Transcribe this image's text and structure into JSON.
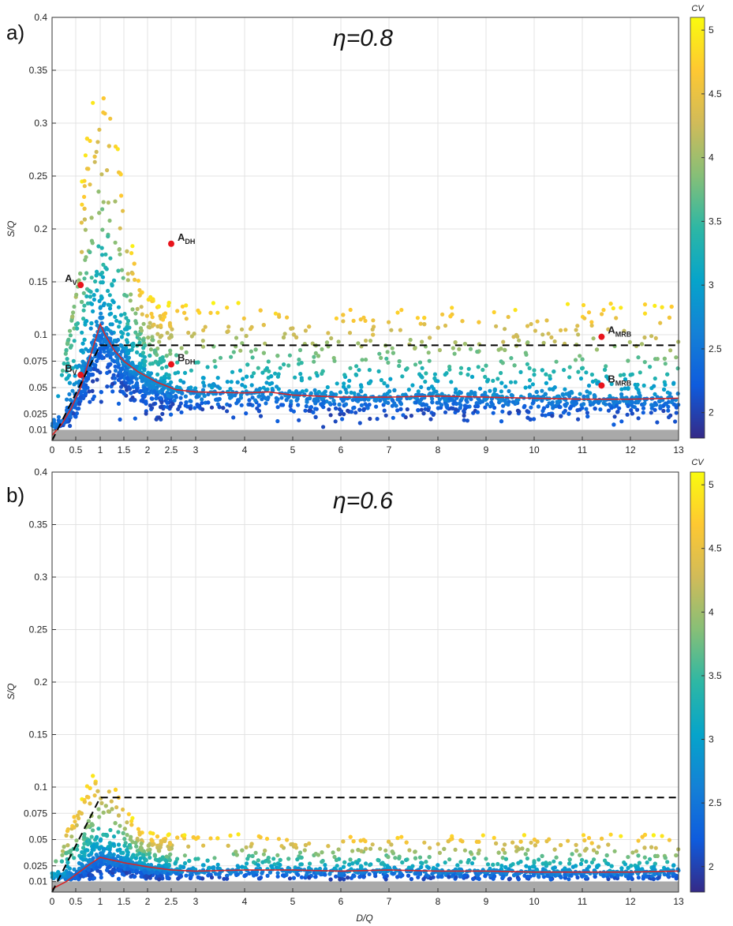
{
  "chart_data": [
    {
      "type": "scatter",
      "panel_label": "a)",
      "title": "η=0.8",
      "xlabel": "",
      "ylabel": "S/Q",
      "xlim": [
        0,
        13
      ],
      "ylim": [
        0,
        0.4
      ],
      "xticks": [
        "0",
        "0.5",
        "1",
        "1.5",
        "2",
        "2.5",
        "3",
        "4",
        "5",
        "6",
        "7",
        "8",
        "9",
        "10",
        "11",
        "12",
        "13"
      ],
      "xtick_values": [
        0,
        0.5,
        1,
        1.5,
        2,
        2.5,
        3,
        4,
        5,
        6,
        7,
        8,
        9,
        10,
        11,
        12,
        13
      ],
      "yticks": [
        "0.01",
        "0.025",
        "0.05",
        "0.075",
        "0.1",
        "0.15",
        "0.2",
        "0.25",
        "0.3",
        "0.35",
        "0.4"
      ],
      "ytick_values": [
        0.01,
        0.025,
        0.05,
        0.075,
        0.1,
        0.15,
        0.2,
        0.25,
        0.3,
        0.35,
        0.4
      ],
      "grid": true,
      "shaded_band_ymax": 0.01,
      "dashed_line": {
        "x": [
          0,
          1,
          13
        ],
        "y": [
          0,
          0.09,
          0.09
        ]
      },
      "median_line": {
        "x": [
          0,
          0.2,
          0.4,
          0.6,
          0.8,
          1.0,
          1.1,
          1.3,
          1.5,
          1.8,
          2.2,
          2.6,
          3.0,
          4.0,
          4.5,
          5.0,
          6.0,
          7.0,
          8.0,
          9.0,
          10.0,
          11.0,
          12.0,
          13.0
        ],
        "y": [
          0.005,
          0.015,
          0.03,
          0.05,
          0.08,
          0.11,
          0.1,
          0.085,
          0.075,
          0.065,
          0.055,
          0.048,
          0.046,
          0.045,
          0.046,
          0.043,
          0.041,
          0.041,
          0.042,
          0.041,
          0.04,
          0.039,
          0.039,
          0.04
        ]
      },
      "highlight_points": [
        {
          "label": "A",
          "sub": "V",
          "x": 0.6,
          "y": 0.147
        },
        {
          "label": "B",
          "sub": "V",
          "x": 0.6,
          "y": 0.062
        },
        {
          "label": "A",
          "sub": "DH",
          "x": 2.5,
          "y": 0.186
        },
        {
          "label": "B",
          "sub": "DH",
          "x": 2.5,
          "y": 0.072
        },
        {
          "label": "A",
          "sub": "MRB",
          "x": 11.4,
          "y": 0.098
        },
        {
          "label": "B",
          "sub": "MRB",
          "x": 11.4,
          "y": 0.052
        }
      ],
      "scatter_color_encoding": "CV",
      "scatter_peak_spread": 0.35,
      "scatter_tail_spread": 0.13,
      "scatter_tail_center": 0.041
    },
    {
      "type": "scatter",
      "panel_label": "b)",
      "title": "η=0.6",
      "xlabel": "D/Q",
      "ylabel": "S/Q",
      "xlim": [
        0,
        13
      ],
      "ylim": [
        0,
        0.4
      ],
      "xticks": [
        "0",
        "0.5",
        "1",
        "1.5",
        "2",
        "2.5",
        "3",
        "4",
        "5",
        "6",
        "7",
        "8",
        "9",
        "10",
        "11",
        "12",
        "13"
      ],
      "xtick_values": [
        0,
        0.5,
        1,
        1.5,
        2,
        2.5,
        3,
        4,
        5,
        6,
        7,
        8,
        9,
        10,
        11,
        12,
        13
      ],
      "yticks": [
        "0.01",
        "0.025",
        "0.05",
        "0.075",
        "0.1",
        "0.15",
        "0.2",
        "0.25",
        "0.3",
        "0.35",
        "0.4"
      ],
      "ytick_values": [
        0.01,
        0.025,
        0.05,
        0.075,
        0.1,
        0.15,
        0.2,
        0.25,
        0.3,
        0.35,
        0.4
      ],
      "grid": true,
      "shaded_band_ymax": 0.01,
      "dashed_line": {
        "x": [
          0,
          1,
          13
        ],
        "y": [
          0,
          0.09,
          0.09
        ]
      },
      "median_line": {
        "x": [
          0,
          0.3,
          0.6,
          0.8,
          1.0,
          1.2,
          1.5,
          2.0,
          2.5,
          3.0,
          4.0,
          5.0,
          6.0,
          7.0,
          8.0,
          9.0,
          10.0,
          11.0,
          12.0,
          13.0
        ],
        "y": [
          0.003,
          0.01,
          0.02,
          0.027,
          0.033,
          0.031,
          0.028,
          0.024,
          0.021,
          0.02,
          0.021,
          0.021,
          0.02,
          0.021,
          0.02,
          0.02,
          0.019,
          0.019,
          0.019,
          0.02
        ]
      },
      "highlight_points": [],
      "scatter_color_encoding": "CV",
      "scatter_peak_spread": 0.12,
      "scatter_tail_spread": 0.055,
      "scatter_tail_center": 0.02
    }
  ],
  "colorbar": {
    "label": "CV",
    "range": [
      1.8,
      5.1
    ],
    "ticks": [
      "2",
      "2.5",
      "3",
      "3.5",
      "4",
      "4.5",
      "5"
    ],
    "tick_values": [
      2,
      2.5,
      3,
      3.5,
      4,
      4.5,
      5
    ],
    "colormap": "parula",
    "stops": [
      "#352a87",
      "#0f5cdd",
      "#1481d6",
      "#06a4ca",
      "#2eb7a4",
      "#87bf77",
      "#d1bb59",
      "#fec832",
      "#f9fb0e"
    ]
  },
  "colors": {
    "median_line": "#d62728",
    "dashed_line": "#000000",
    "highlight_point": "#e8141c",
    "shaded_band": "#a9a9a9",
    "grid": "#e3e3e3"
  }
}
